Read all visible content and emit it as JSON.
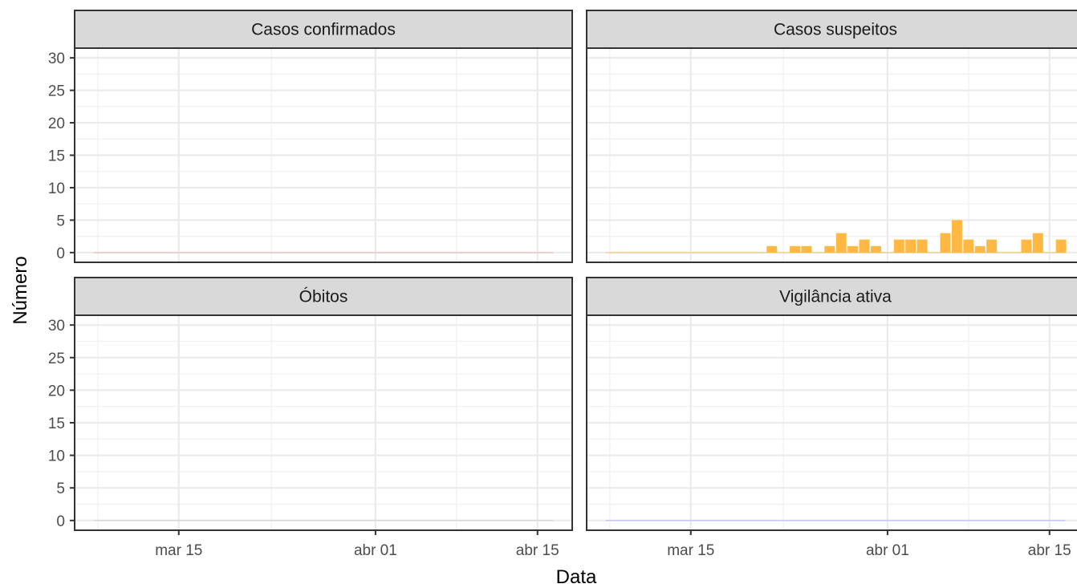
{
  "chart_data": {
    "type": "bar",
    "xlabel": "Data",
    "ylabel": "Número",
    "x_axis": {
      "type": "date",
      "range": [
        "2020-03-06",
        "2020-04-18"
      ],
      "ticks": [
        {
          "date": "2020-03-15",
          "label": "mar 15"
        },
        {
          "date": "2020-04-01",
          "label": "abr 01"
        },
        {
          "date": "2020-04-15",
          "label": "abr 15"
        }
      ],
      "minor_ticks": [
        "2020-03-08",
        "2020-03-23",
        "2020-04-08"
      ]
    },
    "y_axis": {
      "range": [
        -1.5,
        31.5
      ],
      "ticks": [
        0,
        5,
        10,
        15,
        20,
        25,
        30
      ],
      "minor_ticks": [
        2.5,
        7.5,
        12.5,
        17.5,
        22.5,
        27.5
      ]
    },
    "grid": true,
    "colors": {
      "casos_confirmados": "#f4a6a6",
      "casos_suspeitos": "#ffb943",
      "obitos": "#c8c8c8",
      "vigilancia_ativa": "#a8a8f0"
    },
    "facets": [
      {
        "title": "Casos confirmados",
        "color_key": "casos_confirmados",
        "data": [
          {
            "date": "2020-03-08",
            "value": 0
          },
          {
            "date": "2020-04-16",
            "value": 0
          }
        ]
      },
      {
        "title": "Casos suspeitos",
        "color_key": "casos_suspeitos",
        "data": [
          {
            "date": "2020-03-08",
            "value": 0
          },
          {
            "date": "2020-03-21",
            "value": 0
          },
          {
            "date": "2020-03-22",
            "value": 1
          },
          {
            "date": "2020-03-24",
            "value": 1
          },
          {
            "date": "2020-03-25",
            "value": 1
          },
          {
            "date": "2020-03-27",
            "value": 1
          },
          {
            "date": "2020-03-28",
            "value": 3
          },
          {
            "date": "2020-03-29",
            "value": 1
          },
          {
            "date": "2020-03-30",
            "value": 2
          },
          {
            "date": "2020-03-31",
            "value": 1
          },
          {
            "date": "2020-04-01",
            "value": 0
          },
          {
            "date": "2020-04-02",
            "value": 2
          },
          {
            "date": "2020-04-03",
            "value": 2
          },
          {
            "date": "2020-04-04",
            "value": 2
          },
          {
            "date": "2020-04-05",
            "value": 0
          },
          {
            "date": "2020-04-06",
            "value": 3
          },
          {
            "date": "2020-04-07",
            "value": 5
          },
          {
            "date": "2020-04-08",
            "value": 2
          },
          {
            "date": "2020-04-09",
            "value": 1
          },
          {
            "date": "2020-04-10",
            "value": 2
          },
          {
            "date": "2020-04-13",
            "value": 2
          },
          {
            "date": "2020-04-14",
            "value": 3
          },
          {
            "date": "2020-04-16",
            "value": 2
          }
        ]
      },
      {
        "title": "Óbitos",
        "color_key": "obitos",
        "data": [
          {
            "date": "2020-03-08",
            "value": 0
          },
          {
            "date": "2020-04-16",
            "value": 0
          }
        ]
      },
      {
        "title": "Vigilância ativa",
        "color_key": "vigilancia_ativa",
        "data": [
          {
            "date": "2020-03-08",
            "value": 0
          },
          {
            "date": "2020-04-16",
            "value": 0
          }
        ]
      }
    ]
  }
}
